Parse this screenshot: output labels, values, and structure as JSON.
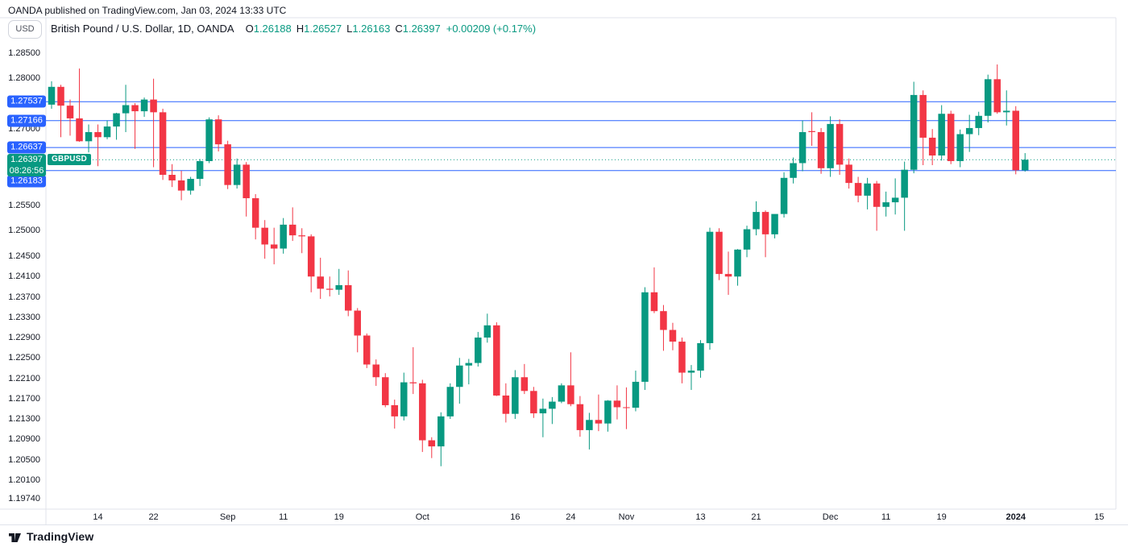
{
  "attribution": "OANDA published on TradingView.com, Jan 03, 2024 13:33 UTC",
  "header": {
    "unit_button": "USD",
    "symbol_title": "British Pound / U.S. Dollar, 1D, OANDA",
    "ohlc": [
      {
        "label": "O",
        "value": "1.26188"
      },
      {
        "label": "H",
        "value": "1.26527"
      },
      {
        "label": "L",
        "value": "1.26163"
      },
      {
        "label": "C",
        "value": "1.26397"
      }
    ],
    "change": "+0.00209 (+0.17%)"
  },
  "symbol_label": "GBPUSD",
  "price_scale": {
    "side": "left",
    "ticks": [
      {
        "price": 1.285,
        "label": "1.28500"
      },
      {
        "price": 1.28,
        "label": "1.28000"
      },
      {
        "price": 1.27,
        "label": "1.27000"
      },
      {
        "price": 1.255,
        "label": "1.25500"
      },
      {
        "price": 1.25,
        "label": "1.25000"
      },
      {
        "price": 1.245,
        "label": "1.24500"
      },
      {
        "price": 1.241,
        "label": "1.24100"
      },
      {
        "price": 1.237,
        "label": "1.23700"
      },
      {
        "price": 1.233,
        "label": "1.23300"
      },
      {
        "price": 1.229,
        "label": "1.22900"
      },
      {
        "price": 1.225,
        "label": "1.22500"
      },
      {
        "price": 1.221,
        "label": "1.22100"
      },
      {
        "price": 1.217,
        "label": "1.21700"
      },
      {
        "price": 1.213,
        "label": "1.21300"
      },
      {
        "price": 1.209,
        "label": "1.20900"
      },
      {
        "price": 1.205,
        "label": "1.20500"
      },
      {
        "price": 1.201,
        "label": "1.20100"
      },
      {
        "price": 1.1974,
        "label": "1.19740"
      }
    ],
    "level_badges": [
      {
        "price": 1.27537,
        "label": "1.27537"
      },
      {
        "price": 1.27166,
        "label": "1.27166"
      },
      {
        "price": 1.26637,
        "label": "1.26637"
      },
      {
        "price": 1.26183,
        "label": "1.26183"
      }
    ],
    "current": {
      "price": "1.26397",
      "countdown": "08:26:56"
    }
  },
  "footer": {
    "logo": "tradingview-logo",
    "wordmark": "TradingView"
  },
  "colors": {
    "up": "#089981",
    "down": "#F23645",
    "level_line": "#2962FF",
    "current_line": "#089981",
    "border": "#E0E3EB",
    "text": "#131722"
  },
  "chart_data": {
    "type": "candlestick",
    "symbol": "GBPUSD",
    "description": "British Pound / U.S. Dollar",
    "timeframe": "1D",
    "exchange": "OANDA",
    "ylim": [
      1.1957,
      1.2922
    ],
    "grid": false,
    "level_lines": [
      1.27537,
      1.27166,
      1.26637,
      1.26183
    ],
    "current_price": {
      "value": 1.26397,
      "countdown": "08:26:56",
      "direction": "up"
    },
    "time_axis_labels": [
      {
        "label": "14",
        "index": 5,
        "bold": false
      },
      {
        "label": "22",
        "index": 11,
        "bold": false
      },
      {
        "label": "Sep",
        "index": 19,
        "bold": false
      },
      {
        "label": "11",
        "index": 25,
        "bold": false
      },
      {
        "label": "19",
        "index": 31,
        "bold": false
      },
      {
        "label": "Oct",
        "index": 40,
        "bold": false
      },
      {
        "label": "16",
        "index": 50,
        "bold": false
      },
      {
        "label": "24",
        "index": 56,
        "bold": false
      },
      {
        "label": "Nov",
        "index": 62,
        "bold": false
      },
      {
        "label": "13",
        "index": 70,
        "bold": false
      },
      {
        "label": "21",
        "index": 76,
        "bold": false
      },
      {
        "label": "Dec",
        "index": 84,
        "bold": false
      },
      {
        "label": "11",
        "index": 90,
        "bold": false
      },
      {
        "label": "19",
        "index": 96,
        "bold": false
      },
      {
        "label": "2024",
        "index": 104,
        "bold": true
      },
      {
        "label": "15",
        "index": 113,
        "bold": false
      }
    ],
    "candles": [
      [
        "2023-08-07",
        1.2748,
        1.2794,
        1.274,
        1.2783
      ],
      [
        "2023-08-08",
        1.2783,
        1.2787,
        1.2684,
        1.2746
      ],
      [
        "2023-08-09",
        1.2746,
        1.2758,
        1.2687,
        1.2721
      ],
      [
        "2023-08-10",
        1.2721,
        1.2819,
        1.2675,
        1.2676
      ],
      [
        "2023-08-11",
        1.2676,
        1.2709,
        1.2654,
        1.2694
      ],
      [
        "2023-08-14",
        1.2694,
        1.2709,
        1.2627,
        1.2684
      ],
      [
        "2023-08-15",
        1.2684,
        1.2717,
        1.268,
        1.2705
      ],
      [
        "2023-08-16",
        1.2705,
        1.2732,
        1.2679,
        1.2731
      ],
      [
        "2023-08-17",
        1.2731,
        1.2787,
        1.2694,
        1.2747
      ],
      [
        "2023-08-18",
        1.2747,
        1.2751,
        1.2661,
        1.2735
      ],
      [
        "2023-08-21",
        1.2735,
        1.2762,
        1.2724,
        1.2758
      ],
      [
        "2023-08-22",
        1.2758,
        1.2799,
        1.2625,
        1.2733
      ],
      [
        "2023-08-23",
        1.2733,
        1.274,
        1.26,
        1.261
      ],
      [
        "2023-08-24",
        1.261,
        1.2631,
        1.2586,
        1.2599
      ],
      [
        "2023-08-25",
        1.2599,
        1.2618,
        1.256,
        1.2579
      ],
      [
        "2023-08-28",
        1.2579,
        1.2606,
        1.2571,
        1.2602
      ],
      [
        "2023-08-29",
        1.2602,
        1.2641,
        1.2588,
        1.2637
      ],
      [
        "2023-08-30",
        1.2637,
        1.2723,
        1.2633,
        1.2719
      ],
      [
        "2023-08-31",
        1.2719,
        1.2727,
        1.2656,
        1.267
      ],
      [
        "2023-09-01",
        1.267,
        1.2677,
        1.2582,
        1.259
      ],
      [
        "2023-09-04",
        1.259,
        1.2642,
        1.2583,
        1.263
      ],
      [
        "2023-09-05",
        1.263,
        1.2635,
        1.2528,
        1.2564
      ],
      [
        "2023-09-06",
        1.2564,
        1.2572,
        1.2483,
        1.2506
      ],
      [
        "2023-09-07",
        1.2506,
        1.2521,
        1.2445,
        1.2473
      ],
      [
        "2023-09-08",
        1.2473,
        1.2506,
        1.2434,
        1.2465
      ],
      [
        "2023-09-11",
        1.2465,
        1.2525,
        1.2455,
        1.2512
      ],
      [
        "2023-09-12",
        1.2512,
        1.2546,
        1.248,
        1.2491
      ],
      [
        "2023-09-13",
        1.2491,
        1.2505,
        1.2456,
        1.2489
      ],
      [
        "2023-09-14",
        1.2489,
        1.2493,
        1.2379,
        1.241
      ],
      [
        "2023-09-15",
        1.241,
        1.2447,
        1.2366,
        1.2386
      ],
      [
        "2023-09-18",
        1.2386,
        1.241,
        1.2371,
        1.2384
      ],
      [
        "2023-09-19",
        1.2384,
        1.2425,
        1.2374,
        1.2393
      ],
      [
        "2023-09-20",
        1.2393,
        1.2422,
        1.2332,
        1.2343
      ],
      [
        "2023-09-21",
        1.2343,
        1.2348,
        1.2261,
        1.2294
      ],
      [
        "2023-09-22",
        1.2294,
        1.2298,
        1.223,
        1.2237
      ],
      [
        "2023-09-25",
        1.2237,
        1.2247,
        1.2195,
        1.2212
      ],
      [
        "2023-09-26",
        1.2212,
        1.222,
        1.2153,
        1.2157
      ],
      [
        "2023-09-27",
        1.2157,
        1.2168,
        1.2111,
        1.2135
      ],
      [
        "2023-09-28",
        1.2135,
        1.2221,
        1.2127,
        1.2202
      ],
      [
        "2023-09-29",
        1.2202,
        1.2271,
        1.2179,
        1.22
      ],
      [
        "2023-10-02",
        1.22,
        1.2207,
        1.2065,
        1.2088
      ],
      [
        "2023-10-03",
        1.2088,
        1.2094,
        1.2053,
        1.2076
      ],
      [
        "2023-10-04",
        1.2076,
        1.2143,
        1.2037,
        1.2135
      ],
      [
        "2023-10-05",
        1.2135,
        1.22,
        1.213,
        1.2193
      ],
      [
        "2023-10-06",
        1.2193,
        1.225,
        1.216,
        1.2235
      ],
      [
        "2023-10-09",
        1.2235,
        1.2248,
        1.2198,
        1.224
      ],
      [
        "2023-10-10",
        1.224,
        1.2301,
        1.2233,
        1.229
      ],
      [
        "2023-10-11",
        1.229,
        1.2337,
        1.228,
        1.2314
      ],
      [
        "2023-10-12",
        1.2314,
        1.232,
        1.2175,
        1.2176
      ],
      [
        "2023-10-13",
        1.2176,
        1.22,
        1.2123,
        1.214
      ],
      [
        "2023-10-16",
        1.214,
        1.2226,
        1.213,
        1.2212
      ],
      [
        "2023-10-17",
        1.2212,
        1.2238,
        1.2179,
        1.2185
      ],
      [
        "2023-10-18",
        1.2185,
        1.2193,
        1.2132,
        1.2141
      ],
      [
        "2023-10-19",
        1.2141,
        1.217,
        1.2094,
        1.215
      ],
      [
        "2023-10-20",
        1.215,
        1.2173,
        1.212,
        1.2164
      ],
      [
        "2023-10-23",
        1.2164,
        1.22,
        1.2161,
        1.2196
      ],
      [
        "2023-10-24",
        1.2196,
        1.2261,
        1.2155,
        1.2159
      ],
      [
        "2023-10-25",
        1.2159,
        1.2175,
        1.2095,
        1.2108
      ],
      [
        "2023-10-26",
        1.2108,
        1.2142,
        1.207,
        1.2128
      ],
      [
        "2023-10-27",
        1.2128,
        1.2178,
        1.2106,
        1.2121
      ],
      [
        "2023-10-30",
        1.2121,
        1.2167,
        1.2105,
        1.2166
      ],
      [
        "2023-10-31",
        1.2166,
        1.2196,
        1.2129,
        1.2153
      ],
      [
        "2023-11-01",
        1.2153,
        1.2192,
        1.211,
        1.2152
      ],
      [
        "2023-11-02",
        1.2152,
        1.2225,
        1.2145,
        1.2203
      ],
      [
        "2023-11-03",
        1.2203,
        1.2389,
        1.2187,
        1.2379
      ],
      [
        "2023-11-06",
        1.2379,
        1.2428,
        1.2338,
        1.2342
      ],
      [
        "2023-11-07",
        1.2342,
        1.2354,
        1.2264,
        1.2305
      ],
      [
        "2023-11-08",
        1.2305,
        1.2319,
        1.2265,
        1.2282
      ],
      [
        "2023-11-09",
        1.2282,
        1.229,
        1.22,
        1.2221
      ],
      [
        "2023-11-10",
        1.2221,
        1.2236,
        1.2187,
        1.2225
      ],
      [
        "2023-11-13",
        1.2225,
        1.2285,
        1.2211,
        1.2279
      ],
      [
        "2023-11-14",
        1.2279,
        1.2506,
        1.2266,
        1.2498
      ],
      [
        "2023-11-15",
        1.2498,
        1.2505,
        1.2403,
        1.2415
      ],
      [
        "2023-11-16",
        1.2415,
        1.2459,
        1.2374,
        1.241
      ],
      [
        "2023-11-17",
        1.241,
        1.2464,
        1.2392,
        1.2463
      ],
      [
        "2023-11-20",
        1.2463,
        1.251,
        1.2448,
        1.2503
      ],
      [
        "2023-11-21",
        1.2503,
        1.2558,
        1.2491,
        1.2537
      ],
      [
        "2023-11-22",
        1.2537,
        1.254,
        1.2448,
        1.2493
      ],
      [
        "2023-11-23",
        1.2493,
        1.2529,
        1.2485,
        1.2533
      ],
      [
        "2023-11-24",
        1.2533,
        1.2615,
        1.2526,
        1.2604
      ],
      [
        "2023-11-27",
        1.2604,
        1.2644,
        1.2593,
        1.2633
      ],
      [
        "2023-11-28",
        1.2633,
        1.2717,
        1.2617,
        1.2694
      ],
      [
        "2023-11-29",
        1.2696,
        1.2733,
        1.2667,
        1.2694
      ],
      [
        "2023-11-30",
        1.2694,
        1.2702,
        1.2612,
        1.2623
      ],
      [
        "2023-12-01",
        1.2623,
        1.2725,
        1.2606,
        1.271
      ],
      [
        "2023-12-04",
        1.271,
        1.2719,
        1.261,
        1.263
      ],
      [
        "2023-12-05",
        1.263,
        1.2642,
        1.2583,
        1.2594
      ],
      [
        "2023-12-06",
        1.2594,
        1.2606,
        1.2556,
        1.2569
      ],
      [
        "2023-12-07",
        1.2569,
        1.2604,
        1.2542,
        1.2593
      ],
      [
        "2023-12-08",
        1.2593,
        1.2598,
        1.25,
        1.2547
      ],
      [
        "2023-12-11",
        1.2547,
        1.2577,
        1.2528,
        1.2556
      ],
      [
        "2023-12-12",
        1.2556,
        1.2603,
        1.2532,
        1.2565
      ],
      [
        "2023-12-13",
        1.2565,
        1.2636,
        1.25,
        1.262
      ],
      [
        "2023-12-14",
        1.262,
        1.2793,
        1.2613,
        1.2767
      ],
      [
        "2023-12-15",
        1.2767,
        1.2776,
        1.2629,
        1.2683
      ],
      [
        "2023-12-18",
        1.2683,
        1.27,
        1.2629,
        1.2648
      ],
      [
        "2023-12-19",
        1.2648,
        1.2747,
        1.2638,
        1.273
      ],
      [
        "2023-12-20",
        1.273,
        1.2736,
        1.2631,
        1.2637
      ],
      [
        "2023-12-21",
        1.2637,
        1.2699,
        1.2625,
        1.269
      ],
      [
        "2023-12-22",
        1.269,
        1.2728,
        1.2655,
        1.2702
      ],
      [
        "2023-12-26",
        1.2702,
        1.2734,
        1.2688,
        1.2726
      ],
      [
        "2023-12-27",
        1.2726,
        1.2807,
        1.2713,
        1.2798
      ],
      [
        "2023-12-28",
        1.2798,
        1.2827,
        1.273,
        1.2733
      ],
      [
        "2023-12-29",
        1.2733,
        1.2776,
        1.2707,
        1.2736
      ],
      [
        "2024-01-02",
        1.2736,
        1.2745,
        1.2611,
        1.2619
      ],
      [
        "2024-01-03",
        1.26188,
        1.26527,
        1.26163,
        1.26397
      ]
    ]
  }
}
